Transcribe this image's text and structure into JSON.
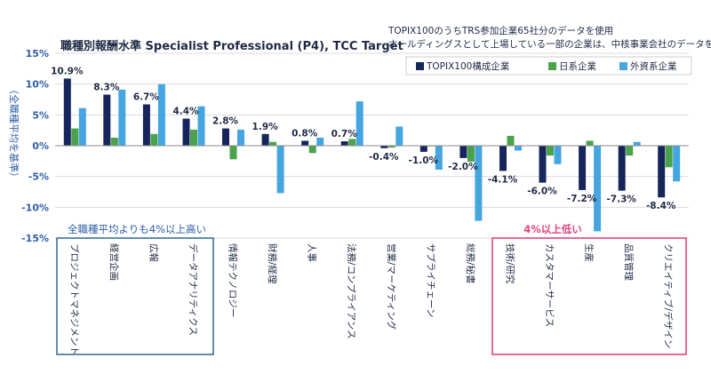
{
  "notes": [
    "TOPIX100のうちTRS参加企業65社分のデータを使用",
    "ホールディングスとして上場している一部の企業は、中核事業会社のデータを使用"
  ],
  "colors": {
    "topix": "#16265c",
    "japanese": "#4aa24a",
    "foreign": "#45a5e0",
    "axis_text": "#2e5ea8",
    "high_box": "#3a6f9a",
    "low_box": "#e2437f",
    "grid": "#dcdcdc"
  },
  "chart_data": {
    "type": "bar",
    "title": "職種別報酬水準 Specialist Professional (P4), TCC Target",
    "ylabel": "（全職種平均を基準）",
    "ylim": [
      -15,
      15
    ],
    "yticks": [
      "15%",
      "10%",
      "5%",
      "0%",
      "-5%",
      "-10%",
      "-15%"
    ],
    "ytick_values": [
      15,
      10,
      5,
      0,
      -5,
      -10,
      -15
    ],
    "grid": true,
    "legend_position": "top-right",
    "categories": [
      "プロジェクトマネジメント",
      "経営企画",
      "広報",
      "データアナリティクス",
      "情報テクノロジー",
      "財務/経理",
      "人事",
      "法務/コンプライアンス",
      "営業/マーケティング",
      "サプライチェーン",
      "総務/秘書",
      "技術/研究",
      "カスタマーサービス",
      "生産",
      "品質管理",
      "クリエイティブ/デザイン"
    ],
    "series": [
      {
        "name": "TOPIX100構成企業",
        "values": [
          10.9,
          8.3,
          6.7,
          4.4,
          2.8,
          1.9,
          0.8,
          0.7,
          -0.4,
          -1.0,
          -2.0,
          -4.1,
          -6.0,
          -7.2,
          -7.3,
          -8.4
        ]
      },
      {
        "name": "日系企業",
        "values": [
          2.8,
          1.3,
          1.9,
          2.6,
          -2.2,
          0.6,
          -1.2,
          1.1,
          -0.3,
          -0.1,
          -2.6,
          1.6,
          -1.6,
          0.8,
          -1.6,
          -3.5
        ]
      },
      {
        "name": "外資系企業",
        "values": [
          6.1,
          9.1,
          10.0,
          6.4,
          2.6,
          -7.7,
          1.3,
          7.2,
          3.1,
          -3.9,
          -12.2,
          -0.8,
          -3.0,
          -13.9,
          0.6,
          -5.8
        ]
      }
    ],
    "data_labels": [
      "10.9%",
      "8.3%",
      "6.7%",
      "4.4%",
      "2.8%",
      "1.9%",
      "0.8%",
      "0.7%",
      "-0.4%",
      "-1.0%",
      "-2.0%",
      "-4.1%",
      "-6.0%",
      "-7.2%",
      "-7.3%",
      "-8.4%"
    ],
    "annotations": {
      "high_group": "全職種平均よりも4%以上高い",
      "low_group": "4%以上低い"
    }
  }
}
